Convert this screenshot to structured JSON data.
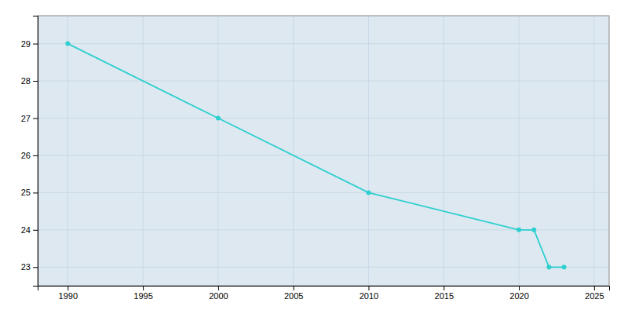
{
  "chart_data": {
    "type": "line",
    "x": [
      1990,
      2000,
      2010,
      2020,
      2021,
      2022,
      2023
    ],
    "values": [
      29,
      27,
      25,
      24,
      24,
      23,
      23
    ],
    "color": "#2dcfcf",
    "marker": "circle",
    "xlim": [
      1988,
      2026
    ],
    "ylim": [
      22.5,
      29.75
    ],
    "xticks": [
      1990,
      1995,
      2000,
      2005,
      2010,
      2015,
      2020,
      2025
    ],
    "yticks": [
      23,
      24,
      25,
      26,
      27,
      28,
      29
    ],
    "grid": true
  }
}
